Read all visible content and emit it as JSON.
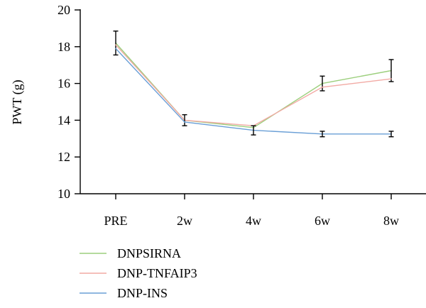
{
  "chart_data": {
    "type": "line",
    "title": "",
    "xlabel": "",
    "ylabel": "PWT (g)",
    "categories": [
      "PRE",
      "2w",
      "4w",
      "6w",
      "8w"
    ],
    "ylim": [
      10,
      20
    ],
    "yticks": [
      "10",
      "12",
      "14",
      "16",
      "18",
      "20"
    ],
    "grid": false,
    "legend_position": "bottom-left",
    "series": [
      {
        "name": "DNPSIRNA",
        "color": "#9ccf7d",
        "values": [
          18.2,
          14.0,
          13.6,
          16.0,
          16.7
        ],
        "errors": [
          0.65,
          0,
          0,
          0.4,
          0.6
        ]
      },
      {
        "name": "DNP-TNFAIP3",
        "color": "#f2aaa4",
        "values": [
          18.1,
          14.0,
          13.7,
          15.8,
          16.25
        ],
        "errors": [
          0,
          0.3,
          0,
          0,
          0
        ]
      },
      {
        "name": "DNP-INS",
        "color": "#6a9fd6",
        "values": [
          17.9,
          13.9,
          13.45,
          13.25,
          13.25
        ],
        "errors": [
          0,
          0,
          0.25,
          0.15,
          0.15
        ]
      }
    ]
  }
}
